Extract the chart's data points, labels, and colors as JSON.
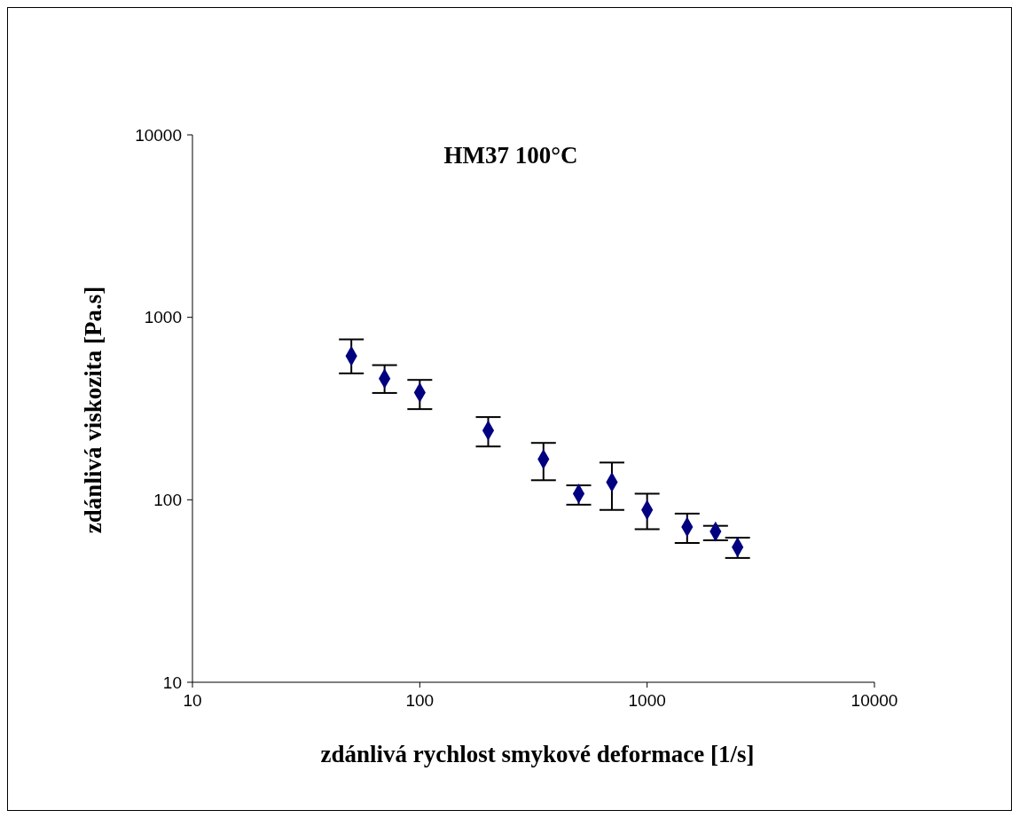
{
  "chart_data": {
    "type": "scatter",
    "title": "HM37 100°C",
    "xlabel": "zdánlivá rychlost smykové deformace [1/s]",
    "ylabel": "zdánlivá viskozita [Pa.s]",
    "x": [
      50,
      70,
      100,
      200,
      350,
      500,
      700,
      1000,
      1500,
      2000,
      2500
    ],
    "values": [
      614,
      462,
      387,
      240,
      167,
      108,
      125,
      88,
      71,
      67,
      55
    ],
    "errors": [
      [
        493,
        757
      ],
      [
        385,
        547
      ],
      [
        314,
        454
      ],
      [
        196,
        284
      ],
      [
        128,
        205
      ],
      [
        94,
        120
      ],
      [
        88,
        160
      ],
      [
        69,
        108
      ],
      [
        58,
        84
      ],
      [
        60,
        72
      ],
      [
        48,
        62
      ]
    ],
    "color": "#000080",
    "marker": "diamond",
    "log": "xy",
    "grid": false,
    "legend": false,
    "xlim": [
      10,
      10000
    ],
    "xticks": [
      10,
      100,
      1000,
      10000
    ],
    "ylim": [
      10,
      10000
    ],
    "yticks": [
      10,
      100,
      1000,
      10000
    ]
  }
}
